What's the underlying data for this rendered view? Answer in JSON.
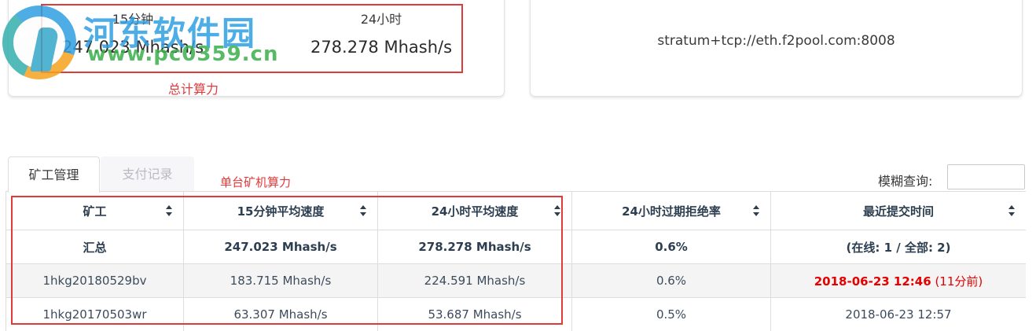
{
  "watermark": {
    "site_name": "河东软件园",
    "site_url": "www.pc0359.cn",
    "star_icon": "✦"
  },
  "summary_cards": {
    "hashrate_card": {
      "stats": [
        {
          "label": "15分钟",
          "value": "247.023 Mhash/s"
        },
        {
          "label": "24小时",
          "value": "278.278 Mhash/s"
        }
      ]
    },
    "stratum_card": {
      "url": "stratum+tcp://eth.f2pool.com:8008"
    }
  },
  "annotations": {
    "total_hashrate_label": "总计算力",
    "single_miner_label": "单台矿机算力",
    "annotation_color": "#e03a3a"
  },
  "tabs": [
    {
      "label": "矿工管理",
      "active": true
    },
    {
      "label": "支付记录",
      "active": false
    }
  ],
  "search": {
    "label": "模糊查询:",
    "value": "",
    "placeholder": ""
  },
  "table": {
    "columns": [
      "矿工",
      "15分钟平均速度",
      "24小时平均速度",
      "24小时过期拒绝率",
      "最近提交时间"
    ],
    "rows": [
      {
        "miner": "汇总",
        "speed_15m": "247.023 Mhash/s",
        "speed_24h": "278.278 Mhash/s",
        "reject_rate": "0.6%",
        "last_main": "(在线: 1 / 全部: 2)",
        "last_suffix": "",
        "red_time": false,
        "bold": true,
        "striped": false
      },
      {
        "miner": "1hkg20180529bv",
        "speed_15m": "183.715 Mhash/s",
        "speed_24h": "224.591 Mhash/s",
        "reject_rate": "0.6%",
        "last_main": "2018-06-23 12:46",
        "last_suffix": " (11分前)",
        "red_time": true,
        "bold": false,
        "striped": true
      },
      {
        "miner": "1hkg20170503wr",
        "speed_15m": "63.307 Mhash/s",
        "speed_24h": "53.687 Mhash/s",
        "reject_rate": "0.5%",
        "last_main": "2018-06-23 12:57",
        "last_suffix": "",
        "red_time": false,
        "bold": false,
        "striped": false
      }
    ]
  },
  "colors": {
    "header_text": "#2c3e50",
    "red_time": "#e60000",
    "watermark_blue": "#2e9fe2",
    "watermark_green": "#3ab04c"
  }
}
